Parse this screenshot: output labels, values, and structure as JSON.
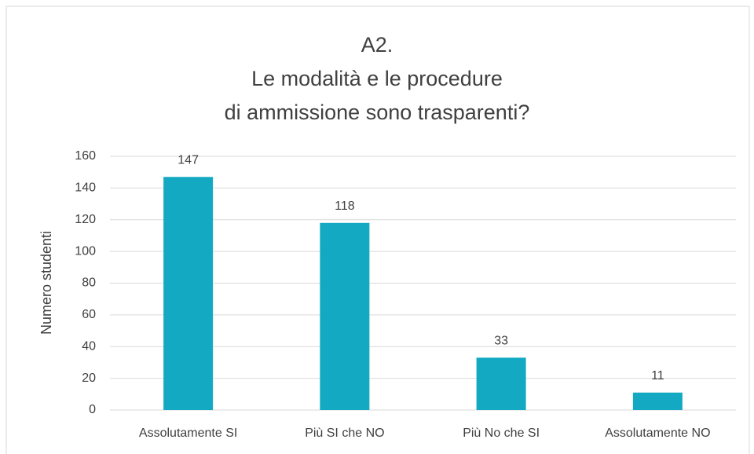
{
  "chart_data": {
    "type": "bar",
    "title": [
      "A2.",
      "Le modalità e le procedure",
      "di ammissione sono trasparenti?"
    ],
    "y_label": "Numero studenti",
    "categories": [
      "Assolutamente SI",
      "Più SI che NO",
      "Più No che SI",
      "Assolutamente NO"
    ],
    "values": [
      147,
      118,
      33,
      11
    ],
    "color": "#14a9c3",
    "ylim": [
      0,
      160
    ],
    "yticks": [
      0,
      20,
      40,
      60,
      80,
      100,
      120,
      140,
      160
    ],
    "grid": true
  }
}
